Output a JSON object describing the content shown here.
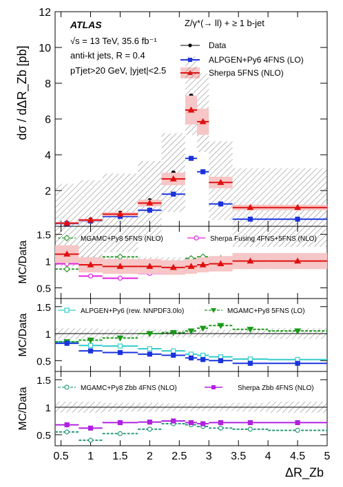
{
  "colors": {
    "data": "#000000",
    "alpgen": "#1a33dd",
    "sherpa": "#e01010",
    "sherpa_band": "#f7c6c6",
    "mgamc5_nlo": "#2a9a2a",
    "sherpa_fusing": "#e020e0",
    "alpgen_rew": "#33cccc",
    "mgamc5_lo": "#1a9a1a",
    "mgamc_zbb": "#2a9a7a",
    "sherpa_zbb": "#b020e0"
  },
  "chart_data": [
    {
      "type": "scatter",
      "panel": "main",
      "ylabel": "dσ / dΔR_Zb [pb]",
      "ylim": [
        0,
        12
      ],
      "yticks": [
        "2",
        "4",
        "6",
        "8",
        "10",
        "12"
      ],
      "atlas_label": "ATLAS",
      "info_lines": [
        "√s = 13 TeV, 35.6 fb⁻¹",
        "anti-kt jets, R = 0.4",
        "pTjet>20 GeV, |yjet|<2.5"
      ],
      "selection_label": "Z/γ*(→ ll) + ≥ 1 b-jet",
      "legend_placement": "top-right",
      "bin_edges": [
        0.4,
        0.8,
        1.2,
        1.8,
        2.2,
        2.6,
        2.8,
        3.0,
        3.4,
        4.0,
        5.0
      ],
      "series": [
        {
          "name": "Data",
          "key": "data",
          "values": [
            0.18,
            0.38,
            0.75,
            1.45,
            3.0,
            7.3,
            6.35,
            2.55,
            1.05,
            1.05
          ]
        },
        {
          "name": "ALPGEN+Py6 4FNS (LO)",
          "key": "alpgen",
          "values": [
            0.15,
            0.3,
            0.55,
            0.9,
            1.8,
            3.8,
            3.05,
            1.25,
            0.4,
            0.4
          ]
        },
        {
          "name": "Sherpa 5FNS (NLO)",
          "key": "sherpa",
          "values": [
            0.18,
            0.35,
            0.68,
            1.3,
            2.65,
            6.5,
            5.85,
            2.45,
            1.05,
            1.05
          ]
        }
      ]
    },
    {
      "type": "scatter",
      "panel": "ratio1",
      "ylabel": "MC/Data",
      "ylim": [
        0.3,
        1.65
      ],
      "yticks": [
        "0.5",
        "1",
        "1.5"
      ],
      "bin_edges": [
        0.4,
        0.8,
        1.2,
        1.8,
        2.2,
        2.6,
        2.8,
        3.0,
        3.4,
        4.0,
        5.0
      ],
      "series": [
        {
          "name": "MGAMC+Py8 5FNS (NLO)",
          "key": "mgamc5_nlo",
          "values": [
            0.85,
            0.98,
            1.08,
            0.93,
            0.92,
            1.05,
            1.08,
            1.05,
            1.02,
            1.0
          ]
        },
        {
          "name": "Sherpa Fusing 4FNS+5FNS (NLO)",
          "key": "sherpa_fusing",
          "values": [
            0.95,
            0.72,
            0.68,
            0.77,
            0.82,
            0.9,
            0.9,
            0.95,
            1.02,
            1.02
          ]
        },
        {
          "name": "",
          "key": "sherpa",
          "values": [
            1.13,
            0.93,
            0.9,
            0.9,
            0.88,
            0.9,
            0.93,
            0.95,
            1.0,
            1.0
          ]
        }
      ]
    },
    {
      "type": "scatter",
      "panel": "ratio2",
      "ylabel": "MC/Data",
      "ylim": [
        0.3,
        1.65
      ],
      "yticks": [
        "0.5",
        "1",
        "1.5"
      ],
      "bin_edges": [
        0.4,
        0.8,
        1.2,
        1.8,
        2.2,
        2.6,
        2.8,
        3.0,
        3.4,
        4.0,
        5.0
      ],
      "series": [
        {
          "name": "ALPGEN+Py6 (rew. NNPDF3.0lo)",
          "key": "alpgen_rew",
          "values": [
            0.85,
            0.78,
            0.77,
            0.72,
            0.68,
            0.62,
            0.6,
            0.57,
            0.53,
            0.52
          ]
        },
        {
          "name": "MGAMC+Py8 5FNS (LO)",
          "key": "mgamc5_lo",
          "values": [
            0.85,
            0.88,
            0.92,
            1.0,
            1.02,
            1.05,
            1.1,
            1.15,
            1.08,
            1.05
          ]
        },
        {
          "name": "",
          "key": "alpgen",
          "values": [
            0.82,
            0.68,
            0.65,
            0.62,
            0.6,
            0.55,
            0.52,
            0.5,
            0.45,
            0.45
          ]
        }
      ]
    },
    {
      "type": "scatter",
      "panel": "ratio3",
      "ylabel": "MC/Data",
      "ylim": [
        0.3,
        1.65
      ],
      "yticks": [
        "0.5",
        "1",
        "1.5"
      ],
      "xlabel": "ΔR_Zb",
      "xlim": [
        0.4,
        5.0
      ],
      "xticks": [
        "0.5",
        "1",
        "1.5",
        "2",
        "2.5",
        "3",
        "3.5",
        "4",
        "4.5",
        "5"
      ],
      "bin_edges": [
        0.4,
        0.8,
        1.2,
        1.8,
        2.2,
        2.6,
        2.8,
        3.0,
        3.4,
        4.0,
        5.0
      ],
      "series": [
        {
          "name": "MGAMC+Py8 Zbb 4FNS (NLO)",
          "key": "mgamc_zbb",
          "values": [
            0.55,
            0.4,
            0.52,
            0.6,
            0.7,
            0.68,
            0.65,
            0.62,
            0.6,
            0.58
          ]
        },
        {
          "name": "Sherpa Zbb 4FNS (NLO)",
          "key": "sherpa_zbb",
          "values": [
            0.68,
            0.62,
            0.72,
            0.73,
            0.75,
            0.72,
            0.7,
            0.72,
            0.72,
            0.72
          ]
        }
      ]
    }
  ]
}
